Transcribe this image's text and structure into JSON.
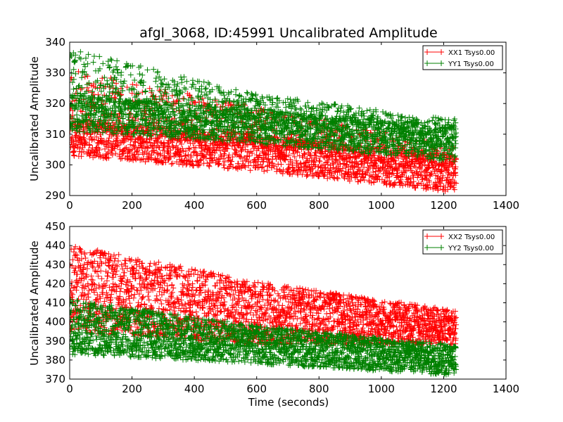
{
  "chart_data": [
    {
      "type": "scatter",
      "title": "afgl_3068, ID:45991 Uncalibrated Amplitude",
      "xlabel": "",
      "ylabel": "Uncalibrated Amplitude",
      "xlim": [
        0,
        1400
      ],
      "ylim": [
        290,
        340
      ],
      "xticks": [
        0,
        200,
        400,
        600,
        800,
        1000,
        1200,
        1400
      ],
      "yticks": [
        290,
        300,
        310,
        320,
        330,
        340
      ],
      "legend_position": "top-right",
      "series": [
        {
          "name": "XX1 Tsys0.00",
          "color": "#ff0000",
          "marker": "plus",
          "x_range": [
            0,
            1240
          ],
          "bands": [
            {
              "x": [
                0,
                600,
                1240
              ],
              "low": [
                303,
                298,
                291
              ],
              "high": [
                315,
                310,
                303
              ],
              "weight": 0.72
            },
            {
              "x": [
                0,
                600,
                1240
              ],
              "low": [
                312,
                305,
                297
              ],
              "high": [
                331,
                319,
                306
              ],
              "weight": 0.28
            }
          ]
        },
        {
          "name": "YY1 Tsys0.00",
          "color": "#008000",
          "marker": "plus",
          "x_range": [
            0,
            1240
          ],
          "bands": [
            {
              "x": [
                0,
                600,
                1240
              ],
              "low": [
                311,
                307,
                301
              ],
              "high": [
                323,
                318,
                313
              ],
              "weight": 0.62
            },
            {
              "x": [
                0,
                600,
                1240
              ],
              "low": [
                318,
                312,
                305
              ],
              "high": [
                338,
                323,
                315
              ],
              "weight": 0.38
            }
          ]
        }
      ]
    },
    {
      "type": "scatter",
      "title": "",
      "xlabel": "Time (seconds)",
      "ylabel": "Uncalibrated Amplitude",
      "xlim": [
        0,
        1400
      ],
      "ylim": [
        370,
        450
      ],
      "xticks": [
        0,
        200,
        400,
        600,
        800,
        1000,
        1200,
        1400
      ],
      "yticks": [
        370,
        380,
        390,
        400,
        410,
        420,
        430,
        440,
        450
      ],
      "legend_position": "top-right",
      "series": [
        {
          "name": "XX2 Tsys0.00",
          "color": "#ff0000",
          "marker": "plus",
          "x_range": [
            0,
            1240
          ],
          "bands": [
            {
              "x": [
                0,
                600,
                1240
              ],
              "low": [
                395,
                388,
                388
              ],
              "high": [
                441,
                421,
                406
              ],
              "weight": 1.0
            }
          ]
        },
        {
          "name": "YY2 Tsys0.00",
          "color": "#008000",
          "marker": "plus",
          "x_range": [
            0,
            1240
          ],
          "bands": [
            {
              "x": [
                0,
                600,
                1240
              ],
              "low": [
                383,
                378,
                372
              ],
              "high": [
                412,
                398,
                388
              ],
              "weight": 1.0
            }
          ]
        }
      ]
    }
  ]
}
